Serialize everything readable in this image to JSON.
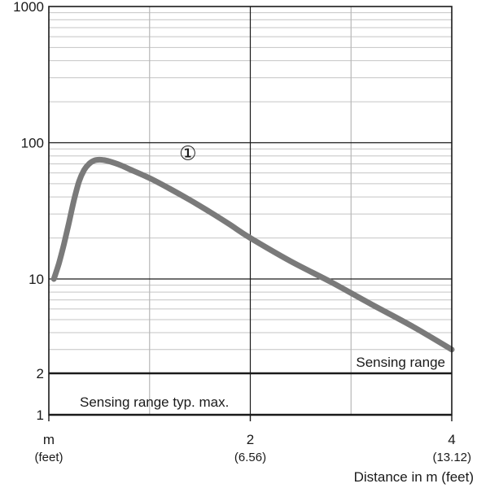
{
  "chart_data": {
    "type": "line",
    "xlabel": "Distance in m (feet)",
    "x_unit_label": "m",
    "x_unit_sub": "(feet)",
    "x_ticks": [
      {
        "value": 2,
        "label": "2",
        "sub": "(6.56)"
      },
      {
        "value": 4,
        "label": "4",
        "sub": "(13.12)"
      }
    ],
    "xlim": [
      0,
      4
    ],
    "yscale": "log",
    "ylim": [
      1,
      1000
    ],
    "y_ticks": [
      {
        "value": 1,
        "label": "1"
      },
      {
        "value": 2,
        "label": "2"
      },
      {
        "value": 10,
        "label": "10"
      },
      {
        "value": 100,
        "label": "100"
      },
      {
        "value": 1000,
        "label": "1000"
      }
    ],
    "grid": true,
    "series": [
      {
        "name": "①",
        "color": "#7a7a7a",
        "x": [
          0.05,
          0.1,
          0.15,
          0.2,
          0.25,
          0.3,
          0.35,
          0.4,
          0.45,
          0.5,
          0.55,
          0.6,
          0.7,
          0.8,
          1.0,
          1.2,
          1.4,
          1.6,
          1.8,
          2.0,
          2.4,
          2.8,
          3.2,
          3.6,
          4.0
        ],
        "y": [
          10,
          13,
          18,
          26,
          38,
          52,
          63,
          70,
          74,
          75,
          74.5,
          73,
          69,
          64,
          55,
          46,
          38,
          31,
          25,
          20,
          13.5,
          9.5,
          6.5,
          4.5,
          3
        ]
      }
    ],
    "annotations": [
      {
        "text": "Sensing range",
        "kind": "level",
        "y": 2
      },
      {
        "text": "Sensing range typ. max.",
        "kind": "level",
        "y": 1
      }
    ],
    "series_marker": {
      "text": "①",
      "x": 1.38,
      "y": 85
    }
  }
}
